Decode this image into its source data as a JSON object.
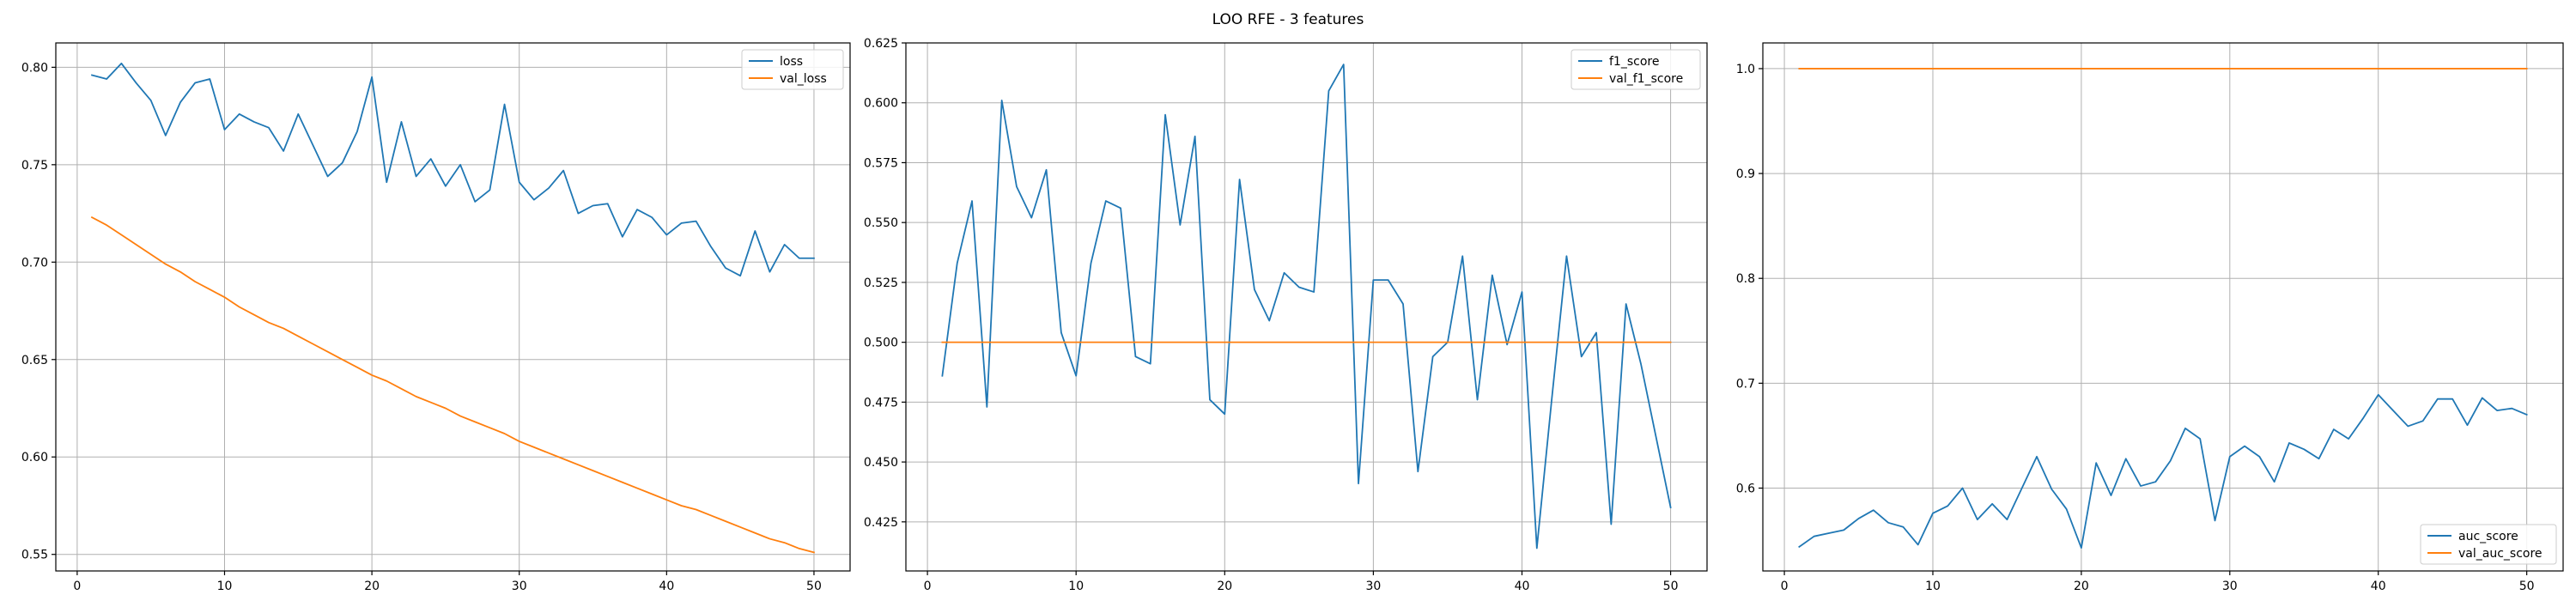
{
  "figure": {
    "suptitle": "LOO RFE - 3 features"
  },
  "chart_data": [
    {
      "type": "line",
      "title": "",
      "xlabel": "",
      "ylabel": "",
      "xlim": [
        -1.45,
        52.45
      ],
      "ylim": [
        0.5415,
        0.8125
      ],
      "xticks": [
        0,
        10,
        20,
        30,
        40,
        50
      ],
      "yticks": [
        0.55,
        0.6,
        0.65,
        0.7,
        0.75,
        0.8
      ],
      "ytick_labels": [
        "0.55",
        "0.60",
        "0.65",
        "0.70",
        "0.75",
        "0.80"
      ],
      "grid": true,
      "legend_position": "top-right",
      "x": [
        1,
        2,
        3,
        4,
        5,
        6,
        7,
        8,
        9,
        10,
        11,
        12,
        13,
        14,
        15,
        16,
        17,
        18,
        19,
        20,
        21,
        22,
        23,
        24,
        25,
        26,
        27,
        28,
        29,
        30,
        31,
        32,
        33,
        34,
        35,
        36,
        37,
        38,
        39,
        40,
        41,
        42,
        43,
        44,
        45,
        46,
        47,
        48,
        49,
        50
      ],
      "series": [
        {
          "name": "loss",
          "color": "#1f77b4",
          "values": [
            0.796,
            0.794,
            0.802,
            0.792,
            0.783,
            0.765,
            0.782,
            0.792,
            0.794,
            0.768,
            0.776,
            0.772,
            0.769,
            0.757,
            0.776,
            0.76,
            0.744,
            0.751,
            0.767,
            0.795,
            0.741,
            0.772,
            0.744,
            0.753,
            0.739,
            0.75,
            0.731,
            0.737,
            0.781,
            0.741,
            0.732,
            0.738,
            0.747,
            0.725,
            0.729,
            0.73,
            0.713,
            0.727,
            0.723,
            0.714,
            0.72,
            0.721,
            0.708,
            0.697,
            0.693,
            0.716,
            0.695,
            0.709,
            0.702,
            0.702
          ]
        },
        {
          "name": "val_loss",
          "color": "#ff7f0e",
          "values": [
            0.723,
            0.719,
            0.714,
            0.709,
            0.704,
            0.699,
            0.695,
            0.69,
            0.686,
            0.682,
            0.677,
            0.673,
            0.669,
            0.666,
            0.662,
            0.658,
            0.654,
            0.65,
            0.646,
            0.642,
            0.639,
            0.635,
            0.631,
            0.628,
            0.625,
            0.621,
            0.618,
            0.615,
            0.612,
            0.608,
            0.605,
            0.602,
            0.599,
            0.596,
            0.593,
            0.59,
            0.587,
            0.584,
            0.581,
            0.578,
            0.575,
            0.573,
            0.57,
            0.567,
            0.564,
            0.561,
            0.558,
            0.556,
            0.553,
            0.551
          ]
        }
      ]
    },
    {
      "type": "line",
      "title": "",
      "xlabel": "",
      "ylabel": "",
      "xlim": [
        -1.45,
        52.45
      ],
      "ylim": [
        0.4045,
        0.625
      ],
      "xticks": [
        0,
        10,
        20,
        30,
        40,
        50
      ],
      "yticks": [
        0.425,
        0.45,
        0.475,
        0.5,
        0.525,
        0.55,
        0.575,
        0.6,
        0.625
      ],
      "ytick_labels": [
        "0.425",
        "0.450",
        "0.475",
        "0.500",
        "0.525",
        "0.550",
        "0.575",
        "0.600",
        "0.625"
      ],
      "grid": true,
      "legend_position": "top-right",
      "x": [
        1,
        2,
        3,
        4,
        5,
        6,
        7,
        8,
        9,
        10,
        11,
        12,
        13,
        14,
        15,
        16,
        17,
        18,
        19,
        20,
        21,
        22,
        23,
        24,
        25,
        26,
        27,
        28,
        29,
        30,
        31,
        32,
        33,
        34,
        35,
        36,
        37,
        38,
        39,
        40,
        41,
        42,
        43,
        44,
        45,
        46,
        47,
        48,
        49,
        50
      ],
      "series": [
        {
          "name": "f1_score",
          "color": "#1f77b4",
          "values": [
            0.486,
            0.533,
            0.559,
            0.473,
            0.601,
            0.565,
            0.552,
            0.572,
            0.504,
            0.486,
            0.533,
            0.559,
            0.556,
            0.494,
            0.491,
            0.595,
            0.549,
            0.586,
            0.476,
            0.47,
            0.568,
            0.522,
            0.509,
            0.529,
            0.523,
            0.521,
            0.605,
            0.616,
            0.441,
            0.526,
            0.526,
            0.516,
            0.446,
            0.494,
            0.5,
            0.536,
            0.476,
            0.528,
            0.499,
            0.521,
            0.414,
            0.476,
            0.536,
            0.494,
            0.504,
            0.424,
            0.516,
            0.491,
            0.461,
            0.431
          ]
        },
        {
          "name": "val_f1_score",
          "color": "#ff7f0e",
          "values": [
            0.5,
            0.5,
            0.5,
            0.5,
            0.5,
            0.5,
            0.5,
            0.5,
            0.5,
            0.5,
            0.5,
            0.5,
            0.5,
            0.5,
            0.5,
            0.5,
            0.5,
            0.5,
            0.5,
            0.5,
            0.5,
            0.5,
            0.5,
            0.5,
            0.5,
            0.5,
            0.5,
            0.5,
            0.5,
            0.5,
            0.5,
            0.5,
            0.5,
            0.5,
            0.5,
            0.5,
            0.5,
            0.5,
            0.5,
            0.5,
            0.5,
            0.5,
            0.5,
            0.5,
            0.5,
            0.5,
            0.5,
            0.5,
            0.5,
            0.5
          ]
        }
      ]
    },
    {
      "type": "line",
      "title": "",
      "xlabel": "",
      "ylabel": "",
      "xlim": [
        -1.45,
        52.45
      ],
      "ylim": [
        0.521,
        1.0245
      ],
      "xticks": [
        0,
        10,
        20,
        30,
        40,
        50
      ],
      "yticks": [
        0.6,
        0.7,
        0.8,
        0.9,
        1.0
      ],
      "ytick_labels": [
        "0.6",
        "0.7",
        "0.8",
        "0.9",
        "1.0"
      ],
      "grid": true,
      "legend_position": "bottom-right",
      "x": [
        1,
        2,
        3,
        4,
        5,
        6,
        7,
        8,
        9,
        10,
        11,
        12,
        13,
        14,
        15,
        16,
        17,
        18,
        19,
        20,
        21,
        22,
        23,
        24,
        25,
        26,
        27,
        28,
        29,
        30,
        31,
        32,
        33,
        34,
        35,
        36,
        37,
        38,
        39,
        40,
        41,
        42,
        43,
        44,
        45,
        46,
        47,
        48,
        49,
        50
      ],
      "series": [
        {
          "name": "auc_score",
          "color": "#1f77b4",
          "values": [
            0.544,
            0.554,
            0.557,
            0.56,
            0.571,
            0.579,
            0.567,
            0.563,
            0.546,
            0.576,
            0.583,
            0.6,
            0.57,
            0.585,
            0.57,
            0.6,
            0.63,
            0.599,
            0.58,
            0.543,
            0.624,
            0.593,
            0.628,
            0.602,
            0.606,
            0.626,
            0.657,
            0.647,
            0.569,
            0.63,
            0.64,
            0.63,
            0.606,
            0.643,
            0.637,
            0.628,
            0.656,
            0.647,
            0.667,
            0.689,
            0.674,
            0.659,
            0.664,
            0.685,
            0.685,
            0.66,
            0.686,
            0.674,
            0.676,
            0.67
          ]
        },
        {
          "name": "val_auc_score",
          "color": "#ff7f0e",
          "values": [
            1.0,
            1.0,
            1.0,
            1.0,
            1.0,
            1.0,
            1.0,
            1.0,
            1.0,
            1.0,
            1.0,
            1.0,
            1.0,
            1.0,
            1.0,
            1.0,
            1.0,
            1.0,
            1.0,
            1.0,
            1.0,
            1.0,
            1.0,
            1.0,
            1.0,
            1.0,
            1.0,
            1.0,
            1.0,
            1.0,
            1.0,
            1.0,
            1.0,
            1.0,
            1.0,
            1.0,
            1.0,
            1.0,
            1.0,
            1.0,
            1.0,
            1.0,
            1.0,
            1.0,
            1.0,
            1.0,
            1.0,
            1.0,
            1.0,
            1.0
          ]
        }
      ]
    }
  ]
}
